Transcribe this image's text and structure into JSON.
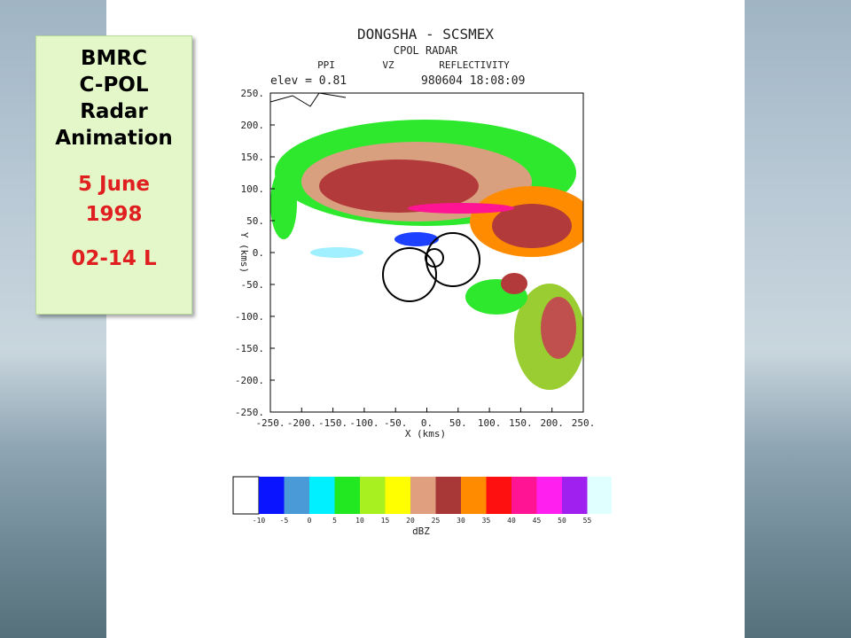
{
  "textbox": {
    "lines": [
      "BMRC",
      "C-POL",
      "Radar",
      "Animation"
    ],
    "date": [
      "5 June",
      "1998"
    ],
    "time": "02-14 L"
  },
  "radar": {
    "title": "DONGSHA - SCSMEX",
    "subtitle": "CPOL RADAR",
    "scan": "PPI",
    "field": "VZ",
    "product": "REFLECTIVITY",
    "elev": "elev = 0.81",
    "datetime": "980604 18:08:09",
    "y_label": "Y (kms)",
    "x_label": "X (kms)",
    "y_ticks": [
      "250.",
      "200.",
      "150.",
      "100.",
      "50.",
      "0.",
      "-50.",
      "-100.",
      "-150.",
      "-200.",
      "-250."
    ],
    "x_ticks": [
      "-250.",
      "-200.",
      "-150.",
      "-100.",
      "-50.",
      "0.",
      "50.",
      "100.",
      "150.",
      "200.",
      "250."
    ]
  },
  "colorbar": {
    "ticks": [
      "-10",
      "-5",
      "0",
      "5",
      "10",
      "15",
      "20",
      "25",
      "30",
      "35",
      "40",
      "45",
      "50",
      "55"
    ],
    "label": "dBZ"
  }
}
